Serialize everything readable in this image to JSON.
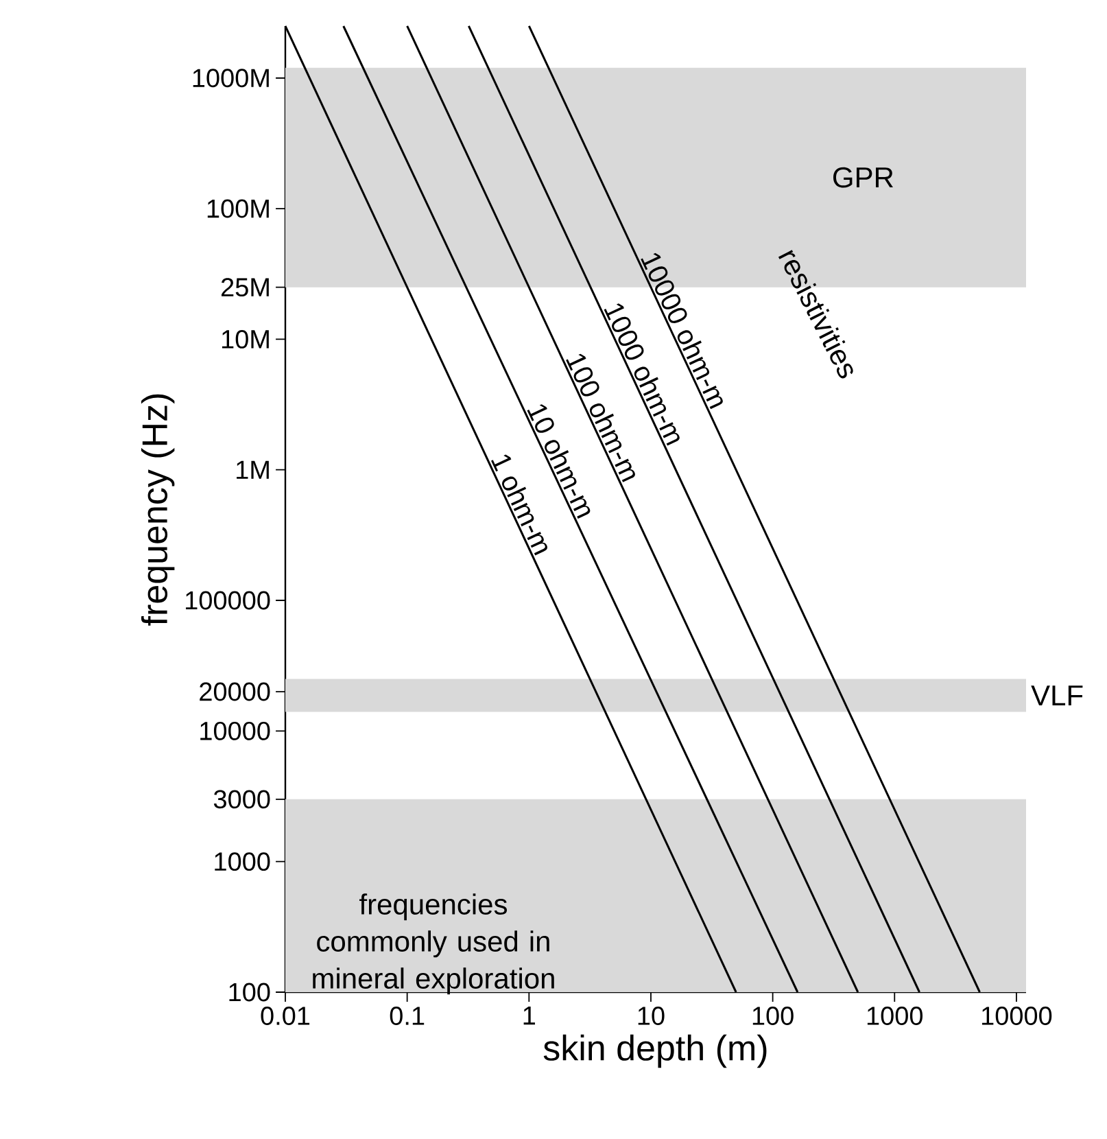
{
  "chart_data": {
    "type": "line",
    "xlabel": "skin depth (m)",
    "ylabel": "frequency (Hz)",
    "log": "xy",
    "xlim": [
      0.01,
      12000
    ],
    "ylim": [
      100,
      2500000000
    ],
    "xticks": [
      0.01,
      0.1,
      1,
      10,
      100,
      1000,
      10000
    ],
    "yticks": [
      100,
      1000,
      3000,
      10000,
      20000,
      100000,
      {
        "value": 1000000,
        "label": "1M"
      },
      {
        "value": 10000000,
        "label": "10M"
      },
      {
        "value": 25000000,
        "label": "25M"
      },
      {
        "value": 100000000,
        "label": "100M"
      },
      {
        "value": 1000000000,
        "label": "1000M"
      }
    ],
    "series": [
      {
        "name": "1 ohm-m",
        "color": "#000000",
        "x": [
          0.01,
          50
        ],
        "values": [
          2500000000,
          100
        ]
      },
      {
        "name": "10 ohm-m",
        "color": "#000000",
        "x": [
          0.03,
          160
        ],
        "values": [
          2500000000,
          100
        ]
      },
      {
        "name": "100 ohm-m",
        "color": "#000000",
        "x": [
          0.1,
          500
        ],
        "values": [
          2500000000,
          100
        ]
      },
      {
        "name": "1000 ohm-m",
        "color": "#000000",
        "x": [
          0.32,
          1600
        ],
        "values": [
          2500000000,
          100
        ]
      },
      {
        "name": "10000 ohm-m",
        "color": "#000000",
        "x": [
          1,
          5000
        ],
        "values": [
          2500000000,
          100
        ]
      }
    ],
    "bands": [
      {
        "axis": "y",
        "from": 25000000,
        "to": 1200000000,
        "label": "GPR",
        "color": "#d9d9d9"
      },
      {
        "axis": "y",
        "from": 14000,
        "to": 25000,
        "label": "VLF",
        "color": "#d9d9d9"
      },
      {
        "axis": "y",
        "from": 100,
        "to": 3000,
        "label": "frequencies commonly used in mineral exploration",
        "color": "#d9d9d9"
      }
    ],
    "annotations": [
      "resistivities"
    ]
  }
}
